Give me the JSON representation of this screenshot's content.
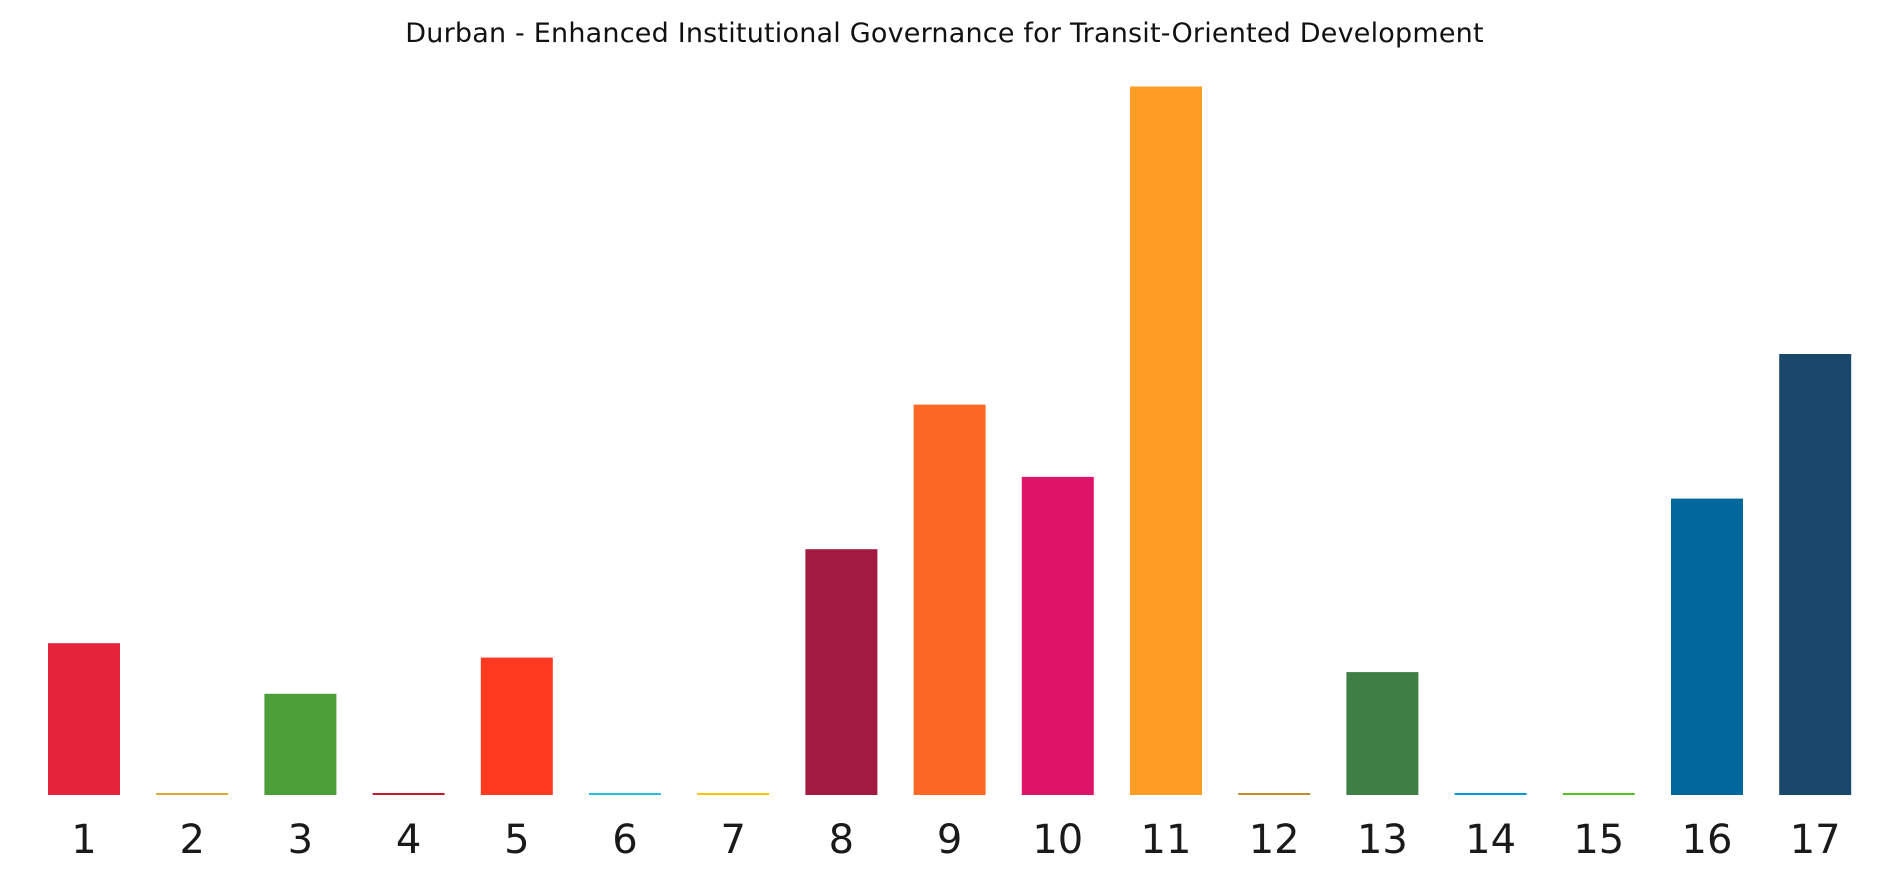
{
  "chart_data": {
    "type": "bar",
    "title": "Durban - Enhanced Institutional Governance for Transit-Oriented Development",
    "xlabel": "",
    "ylabel": "",
    "categories": [
      "1",
      "2",
      "3",
      "4",
      "5",
      "6",
      "7",
      "8",
      "9",
      "10",
      "11",
      "12",
      "13",
      "14",
      "15",
      "16",
      "17"
    ],
    "values": [
      2.1,
      0.0,
      1.4,
      0.0,
      1.9,
      0.0,
      0.0,
      3.4,
      5.4,
      4.4,
      9.8,
      0.0,
      1.7,
      0.0,
      0.0,
      4.1,
      6.1
    ],
    "ylim": [
      0,
      10
    ],
    "grid": false,
    "colors": [
      "#E5243B",
      "#DDA63A",
      "#4C9F38",
      "#C5192D",
      "#FF3A21",
      "#26BDE2",
      "#FCC30B",
      "#A21942",
      "#FD6925",
      "#DD1367",
      "#FD9D24",
      "#BF8B2E",
      "#3F7E44",
      "#0A97D9",
      "#56C02B",
      "#00689D",
      "#19486A"
    ]
  }
}
